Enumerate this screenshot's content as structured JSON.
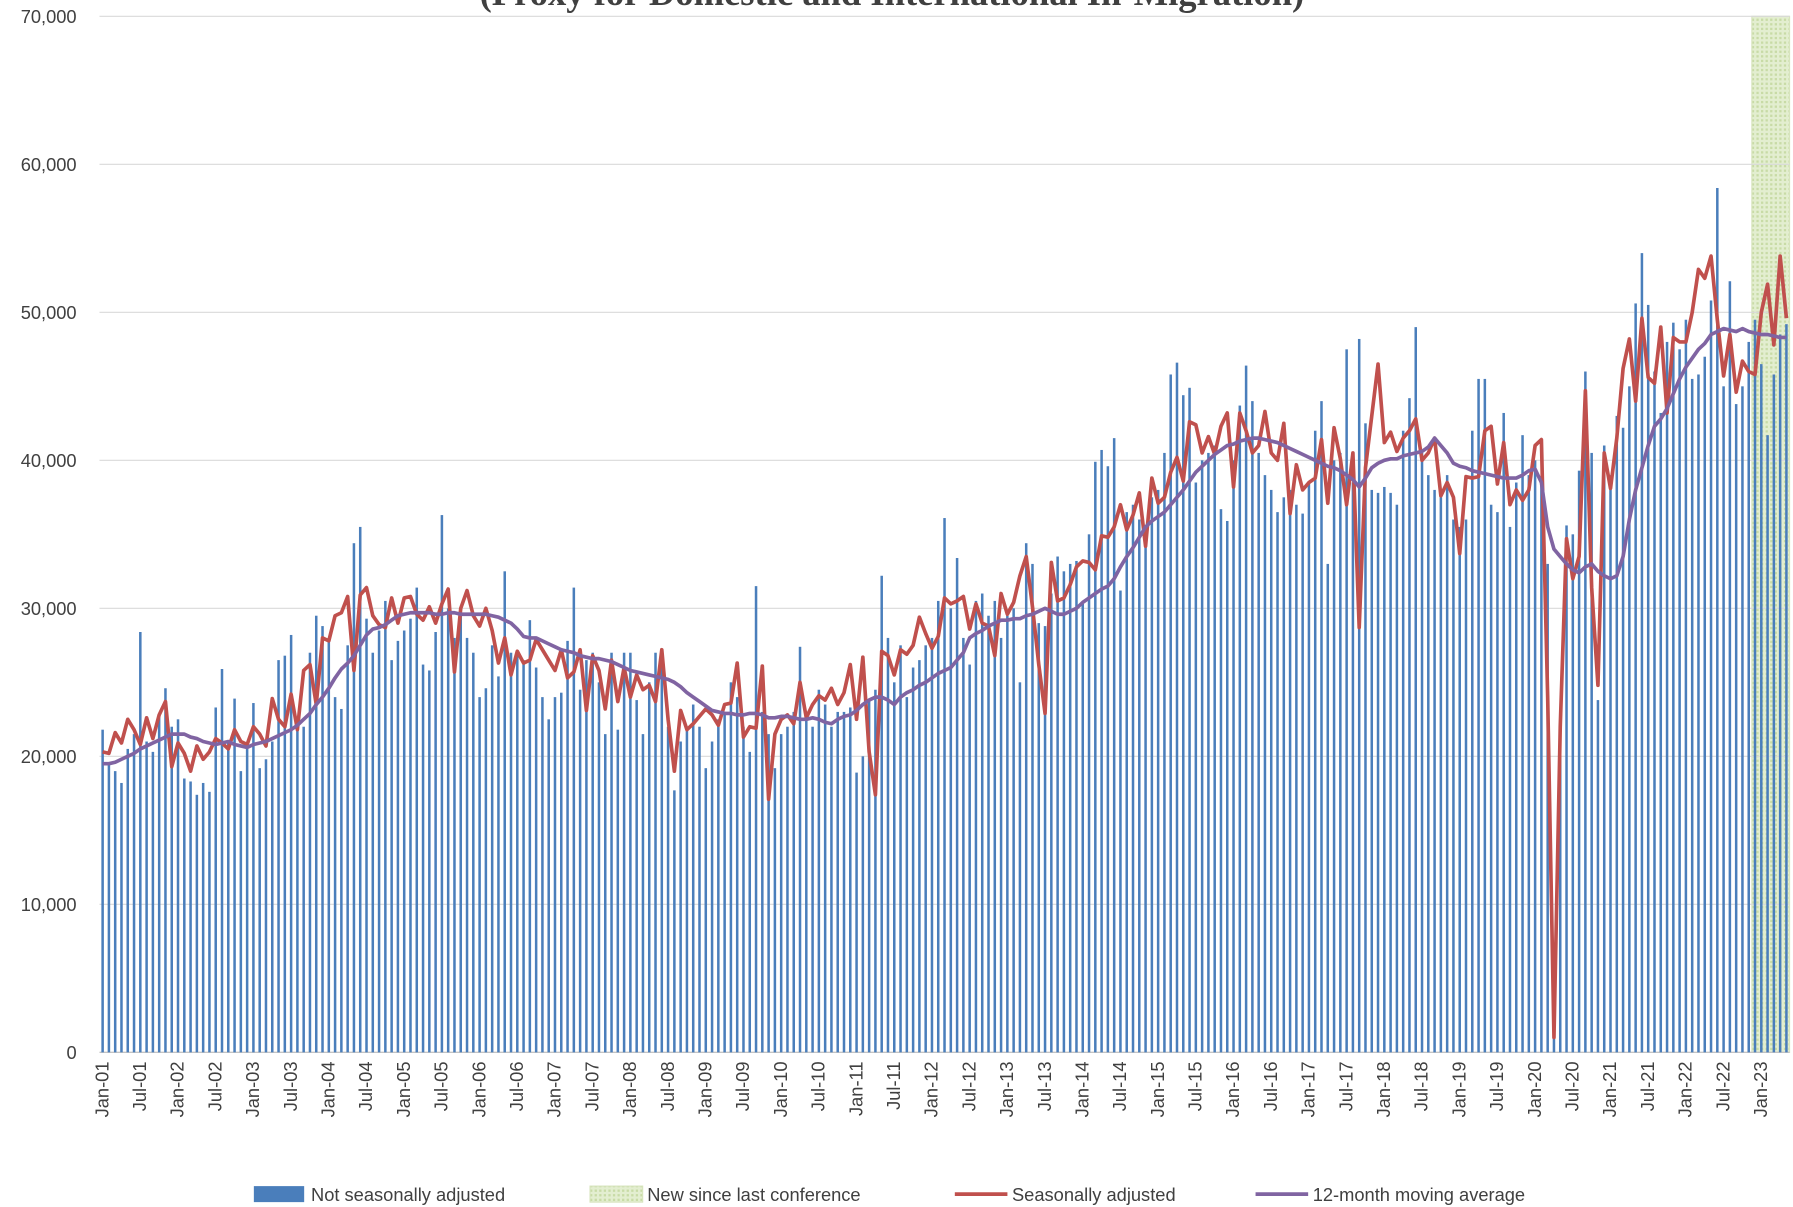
{
  "chart_data": {
    "type": "combo",
    "title": "(Proxy for Domestic and International In-Migration)",
    "categories": [
      "Jan-01",
      null,
      null,
      null,
      null,
      null,
      "Jul-01",
      null,
      null,
      null,
      null,
      null,
      "Jan-02",
      null,
      null,
      null,
      null,
      null,
      "Jul-02",
      null,
      null,
      null,
      null,
      null,
      "Jan-03",
      null,
      null,
      null,
      null,
      null,
      "Jul-03",
      null,
      null,
      null,
      null,
      null,
      "Jan-04",
      null,
      null,
      null,
      null,
      null,
      "Jul-04",
      null,
      null,
      null,
      null,
      null,
      "Jan-05",
      null,
      null,
      null,
      null,
      null,
      "Jul-05",
      null,
      null,
      null,
      null,
      null,
      "Jan-06",
      null,
      null,
      null,
      null,
      null,
      "Jul-06",
      null,
      null,
      null,
      null,
      null,
      "Jan-07",
      null,
      null,
      null,
      null,
      null,
      "Jul-07",
      null,
      null,
      null,
      null,
      null,
      "Jan-08",
      null,
      null,
      null,
      null,
      null,
      "Jul-08",
      null,
      null,
      null,
      null,
      null,
      "Jan-09",
      null,
      null,
      null,
      null,
      null,
      "Jul-09",
      null,
      null,
      null,
      null,
      null,
      "Jan-10",
      null,
      null,
      null,
      null,
      null,
      "Jul-10",
      null,
      null,
      null,
      null,
      null,
      "Jan-11",
      null,
      null,
      null,
      null,
      null,
      "Jul-11",
      null,
      null,
      null,
      null,
      null,
      "Jan-12",
      null,
      null,
      null,
      null,
      null,
      "Jul-12",
      null,
      null,
      null,
      null,
      null,
      "Jan-13",
      null,
      null,
      null,
      null,
      null,
      "Jul-13",
      null,
      null,
      null,
      null,
      null,
      "Jan-14",
      null,
      null,
      null,
      null,
      null,
      "Jul-14",
      null,
      null,
      null,
      null,
      null,
      "Jan-15",
      null,
      null,
      null,
      null,
      null,
      "Jul-15",
      null,
      null,
      null,
      null,
      null,
      "Jan-16",
      null,
      null,
      null,
      null,
      null,
      "Jul-16",
      null,
      null,
      null,
      null,
      null,
      "Jan-17",
      null,
      null,
      null,
      null,
      null,
      "Jul-17",
      null,
      null,
      null,
      null,
      null,
      "Jan-18",
      null,
      null,
      null,
      null,
      null,
      "Jul-18",
      null,
      null,
      null,
      null,
      null,
      "Jan-19",
      null,
      null,
      null,
      null,
      null,
      "Jul-19",
      null,
      null,
      null,
      null,
      null,
      "Jan-20",
      null,
      null,
      null,
      null,
      null,
      "Jul-20",
      null,
      null,
      null,
      null,
      null,
      "Jan-21",
      null,
      null,
      null,
      null,
      null,
      "Jul-21",
      null,
      null,
      null,
      null,
      null,
      "Jan-22",
      null,
      null,
      null,
      null,
      null,
      "Jul-22",
      null,
      null,
      null,
      null,
      null,
      "Jan-23",
      null,
      null,
      null,
      null
    ],
    "series": [
      {
        "name": "Not seasonally adjusted",
        "type": "bar",
        "color": "#4a7ebb",
        "values": [
          21800,
          19500,
          19000,
          18200,
          20500,
          21500,
          28400,
          21000,
          20300,
          22800,
          24600,
          22000,
          22500,
          18500,
          18300,
          17400,
          18200,
          17600,
          23300,
          25900,
          21000,
          23900,
          19000,
          20500,
          23600,
          19200,
          19800,
          21000,
          26500,
          26800,
          28200,
          21900,
          22000,
          27000,
          29500,
          28800,
          27900,
          24000,
          23200,
          27500,
          34400,
          35500,
          29300,
          27000,
          28500,
          30500,
          26500,
          27800,
          28500,
          29300,
          31400,
          26200,
          25800,
          28400,
          36300,
          30000,
          28000,
          29500,
          28000,
          27000,
          24000,
          24600,
          27500,
          25400,
          32500,
          27000,
          27000,
          26500,
          29200,
          26000,
          24000,
          22500,
          24000,
          24300,
          27800,
          31400,
          24500,
          26500,
          27000,
          25000,
          21500,
          27000,
          21800,
          27000,
          27000,
          23800,
          21500,
          25000,
          27000,
          27200,
          22000,
          17700,
          21000,
          22000,
          23500,
          22000,
          19200,
          21000,
          22500,
          23000,
          25000,
          24000,
          22000,
          20300,
          31500,
          23000,
          21500,
          19200,
          21500,
          22000,
          23000,
          27400,
          22500,
          22000,
          24500,
          23500,
          22000,
          23000,
          23000,
          23300,
          18900,
          20000,
          23800,
          24500,
          32200,
          28000,
          25000,
          27500,
          24000,
          26000,
          26500,
          27500,
          28000,
          30500,
          36100,
          30000,
          33400,
          28000,
          26200,
          30500,
          31000,
          29500,
          30500,
          28000,
          29500,
          30000,
          25000,
          34400,
          33000,
          29000,
          28800,
          31000,
          33500,
          32500,
          33000,
          33200,
          30300,
          35000,
          39900,
          40700,
          39600,
          41500,
          31200,
          36500,
          37000,
          36000,
          35500,
          37500,
          38000,
          40500,
          45800,
          46600,
          44400,
          44900,
          38500,
          40000,
          40500,
          41000,
          36700,
          35900,
          40000,
          43700,
          46400,
          44000,
          40500,
          39000,
          38000,
          36500,
          37500,
          38000,
          37000,
          36400,
          38500,
          42000,
          44000,
          33000,
          40000,
          40500,
          47500,
          38500,
          48200,
          42500,
          38000,
          37800,
          38200,
          37800,
          37000,
          42000,
          44200,
          49000,
          40500,
          39000,
          38000,
          37500,
          39000,
          36000,
          35500,
          36000,
          42000,
          45500,
          45500,
          37000,
          36500,
          43200,
          35500,
          38500,
          41700,
          39000,
          40000,
          38500,
          33000,
          1000,
          20500,
          35600,
          35000,
          39300,
          46000,
          40500,
          23800,
          41000,
          39000,
          43000,
          42200,
          45000,
          50600,
          54000,
          50500,
          46000,
          43200,
          48000,
          49300,
          47500,
          49500,
          45500,
          45800,
          47000,
          50800,
          58400,
          45000,
          52100,
          43800,
          45000,
          48000,
          49500,
          46500,
          41700,
          45800,
          48500,
          49200
        ]
      },
      {
        "name": "Seasonally adjusted",
        "type": "line",
        "color": "#c0504d",
        "values": [
          20300,
          20200,
          21600,
          20900,
          22500,
          21800,
          20800,
          22600,
          21200,
          22800,
          23700,
          19300,
          20900,
          20200,
          19000,
          20700,
          19800,
          20300,
          21200,
          20900,
          20500,
          21800,
          21000,
          20800,
          22000,
          21500,
          20700,
          23900,
          22500,
          22000,
          24200,
          21800,
          25800,
          26200,
          23500,
          28000,
          27800,
          29500,
          29700,
          30800,
          25800,
          30900,
          31400,
          29500,
          28900,
          28700,
          30700,
          29000,
          30700,
          30800,
          29600,
          29200,
          30100,
          29000,
          30300,
          31300,
          25700,
          30000,
          31200,
          29500,
          28800,
          30000,
          28500,
          26300,
          28000,
          25500,
          27100,
          26300,
          26500,
          27900,
          27200,
          26500,
          25800,
          27200,
          25300,
          25700,
          27200,
          23100,
          26800,
          25800,
          23200,
          26500,
          23700,
          26000,
          24000,
          25500,
          24500,
          24800,
          23700,
          27200,
          22500,
          19000,
          23100,
          21800,
          22200,
          22700,
          23200,
          22800,
          22100,
          23500,
          23600,
          26300,
          21300,
          22000,
          21900,
          26100,
          17100,
          21500,
          22500,
          22800,
          22200,
          25000,
          22600,
          23500,
          24100,
          23800,
          24600,
          23500,
          24300,
          26200,
          22500,
          26700,
          20300,
          17400,
          27100,
          26800,
          25500,
          27200,
          26900,
          27500,
          29400,
          28300,
          27300,
          28100,
          30700,
          30300,
          30500,
          30800,
          28600,
          30300,
          29000,
          28800,
          26800,
          31000,
          29600,
          30400,
          32200,
          33500,
          30100,
          26200,
          22900,
          33100,
          30500,
          30700,
          31600,
          32800,
          33200,
          33100,
          32600,
          34900,
          34800,
          35500,
          37000,
          35300,
          36300,
          37800,
          34200,
          38800,
          37100,
          37500,
          39200,
          40200,
          38600,
          42600,
          42400,
          40500,
          41600,
          40400,
          42300,
          43200,
          38200,
          43200,
          42000,
          40500,
          41000,
          43300,
          40500,
          40000,
          42500,
          36400,
          39700,
          38000,
          38500,
          38800,
          41400,
          37100,
          42200,
          40100,
          37000,
          40500,
          28700,
          39500,
          43000,
          46500,
          41200,
          41900,
          40600,
          41500,
          42000,
          42800,
          40000,
          40500,
          41500,
          37600,
          38500,
          37500,
          33700,
          38900,
          38800,
          38900,
          42000,
          42300,
          38400,
          41200,
          37000,
          38000,
          37300,
          38000,
          41000,
          41400,
          24000,
          1000,
          22000,
          34700,
          32000,
          33500,
          44700,
          31400,
          24800,
          40500,
          38100,
          41500,
          46200,
          48200,
          44000,
          49600,
          45600,
          45200,
          49000,
          43200,
          48300,
          48000,
          48000,
          50000,
          52900,
          52300,
          53800,
          49500,
          45700,
          48500,
          44600,
          46700,
          46000,
          45800,
          50000,
          51900,
          47800,
          53800,
          49600
        ]
      },
      {
        "name": "12-month moving average",
        "type": "line",
        "color": "#8064a2",
        "values": [
          19500,
          19500,
          19600,
          19800,
          20000,
          20200,
          20500,
          20700,
          20900,
          21100,
          21300,
          21500,
          21500,
          21500,
          21300,
          21200,
          21000,
          20900,
          20800,
          20900,
          21000,
          20800,
          20700,
          20600,
          20800,
          20900,
          21000,
          21200,
          21400,
          21600,
          21800,
          22100,
          22500,
          22900,
          23500,
          24000,
          24600,
          25300,
          25900,
          26300,
          26800,
          27500,
          28200,
          28600,
          28700,
          28900,
          29200,
          29500,
          29600,
          29700,
          29700,
          29700,
          29700,
          29600,
          29600,
          29700,
          29700,
          29600,
          29600,
          29600,
          29600,
          29600,
          29500,
          29400,
          29200,
          29000,
          28600,
          28100,
          28000,
          28000,
          27800,
          27600,
          27400,
          27200,
          27100,
          27000,
          26800,
          26700,
          26600,
          26600,
          26500,
          26400,
          26200,
          26000,
          25800,
          25700,
          25600,
          25500,
          25400,
          25300,
          25200,
          25000,
          24700,
          24300,
          24000,
          23700,
          23400,
          23100,
          23000,
          22900,
          22900,
          22800,
          22800,
          22900,
          22900,
          22800,
          22600,
          22600,
          22700,
          22700,
          22600,
          22500,
          22500,
          22600,
          22500,
          22300,
          22200,
          22500,
          22700,
          22800,
          23100,
          23500,
          23800,
          24000,
          24000,
          23800,
          23500,
          24000,
          24300,
          24500,
          24800,
          25000,
          25300,
          25600,
          25800,
          26000,
          26500,
          27000,
          28000,
          28300,
          28500,
          28800,
          29000,
          29200,
          29200,
          29300,
          29300,
          29500,
          29600,
          29800,
          30000,
          29800,
          29600,
          29600,
          29800,
          30000,
          30400,
          30700,
          31000,
          31300,
          31500,
          32000,
          32800,
          33500,
          34100,
          34800,
          35500,
          35900,
          36200,
          36500,
          37000,
          37500,
          38000,
          38600,
          39200,
          39600,
          40000,
          40400,
          40700,
          41000,
          41100,
          41300,
          41400,
          41500,
          41500,
          41400,
          41300,
          41200,
          41000,
          40800,
          40600,
          40400,
          40200,
          40000,
          39800,
          39600,
          39500,
          39300,
          39000,
          38700,
          38200,
          38800,
          39500,
          39800,
          40000,
          40100,
          40100,
          40300,
          40400,
          40500,
          40600,
          40900,
          41500,
          41000,
          40500,
          39800,
          39600,
          39500,
          39300,
          39200,
          39100,
          39000,
          38900,
          38800,
          38800,
          38800,
          39000,
          39300,
          39400,
          38500,
          35500,
          34000,
          33500,
          33000,
          32600,
          32400,
          32800,
          33000,
          32500,
          32200,
          32000,
          32200,
          33500,
          36000,
          38000,
          39500,
          41000,
          42300,
          42800,
          43500,
          44500,
          45500,
          46300,
          46900,
          47500,
          47900,
          48500,
          48700,
          48900,
          48800,
          48700,
          48900,
          48700,
          48600,
          48500,
          48500,
          48400,
          48300,
          48300
        ]
      }
    ],
    "highlight": {
      "name": "New since last conference",
      "color": "#d7e4bd",
      "start": 263
    },
    "ylim": [
      0,
      70000
    ],
    "yticks": [
      0,
      {
        "value": 10000,
        "label": "10,000"
      },
      {
        "value": 20000,
        "label": "20,000"
      },
      {
        "value": 30000,
        "label": "30,000"
      },
      {
        "value": 40000,
        "label": "40,000"
      },
      {
        "value": 50000,
        "label": "50,000"
      },
      {
        "value": 60000,
        "label": "60,000"
      },
      {
        "value": 70000,
        "label": "70,000"
      }
    ],
    "grid": true
  }
}
